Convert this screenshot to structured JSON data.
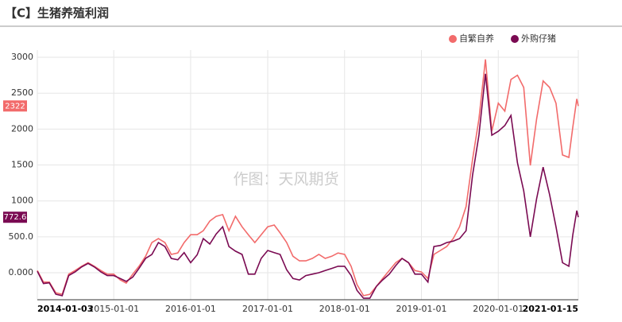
{
  "chart_data": {
    "type": "line",
    "title": "【C】生猪养殖利润",
    "watermark": "作图：天风期货",
    "x": [
      "2014-01-03",
      "2014-02-01",
      "2014-03-01",
      "2014-04-01",
      "2014-05-01",
      "2014-06-01",
      "2014-07-01",
      "2014-08-01",
      "2014-09-01",
      "2014-10-01",
      "2014-11-01",
      "2014-12-01",
      "2015-01-01",
      "2015-02-01",
      "2015-03-01",
      "2015-04-01",
      "2015-05-01",
      "2015-06-01",
      "2015-07-01",
      "2015-08-01",
      "2015-09-01",
      "2015-10-01",
      "2015-11-01",
      "2015-12-01",
      "2016-01-01",
      "2016-02-01",
      "2016-03-01",
      "2016-04-01",
      "2016-05-01",
      "2016-06-01",
      "2016-07-01",
      "2016-08-01",
      "2016-09-01",
      "2016-10-01",
      "2016-11-01",
      "2016-12-01",
      "2017-01-01",
      "2017-02-01",
      "2017-03-01",
      "2017-04-01",
      "2017-05-01",
      "2017-06-01",
      "2017-07-01",
      "2017-08-01",
      "2017-09-01",
      "2017-10-01",
      "2017-11-01",
      "2017-12-01",
      "2018-01-01",
      "2018-02-01",
      "2018-03-01",
      "2018-04-01",
      "2018-05-01",
      "2018-06-01",
      "2018-07-01",
      "2018-08-01",
      "2018-09-01",
      "2018-10-01",
      "2018-11-01",
      "2018-12-01",
      "2019-01-01",
      "2019-02-01",
      "2019-03-01",
      "2019-04-01",
      "2019-05-01",
      "2019-06-01",
      "2019-07-01",
      "2019-08-01",
      "2019-09-01",
      "2019-10-01",
      "2019-11-01",
      "2019-12-01",
      "2020-01-01",
      "2020-02-01",
      "2020-03-01",
      "2020-04-01",
      "2020-05-01",
      "2020-06-01",
      "2020-07-01",
      "2020-08-01",
      "2020-09-01",
      "2020-10-01",
      "2020-11-01",
      "2020-12-01",
      "2020-12-20",
      "2021-01-08",
      "2021-01-15"
    ],
    "series": [
      {
        "name": "自繁自养",
        "color": "#f26b6b",
        "values": [
          30,
          -130,
          -130,
          -280,
          -300,
          -20,
          30,
          90,
          140,
          90,
          30,
          -20,
          -20,
          -100,
          -145,
          -20,
          90,
          230,
          420,
          475,
          420,
          255,
          275,
          420,
          530,
          530,
          585,
          720,
          785,
          810,
          585,
          785,
          640,
          530,
          420,
          530,
          640,
          665,
          555,
          420,
          230,
          165,
          165,
          200,
          255,
          200,
          230,
          275,
          255,
          90,
          -165,
          -320,
          -300,
          -190,
          -80,
          30,
          140,
          200,
          140,
          30,
          10,
          -80,
          255,
          310,
          365,
          475,
          640,
          920,
          1580,
          2140,
          2970,
          1970,
          2360,
          2250,
          2690,
          2750,
          2580,
          1495,
          2140,
          2670,
          2580,
          2360,
          1640,
          1605,
          2030,
          2420,
          2322
        ]
      },
      {
        "name": "外购仔猪",
        "color": "#7a0a52",
        "values": [
          20,
          -150,
          -140,
          -300,
          -320,
          -40,
          10,
          80,
          130,
          80,
          10,
          -40,
          -40,
          -80,
          -120,
          -60,
          60,
          200,
          255,
          420,
          365,
          200,
          180,
          280,
          140,
          250,
          475,
          400,
          540,
          640,
          365,
          300,
          255,
          -20,
          -20,
          200,
          310,
          280,
          255,
          40,
          -80,
          -100,
          -40,
          -20,
          0,
          30,
          60,
          90,
          90,
          -40,
          -245,
          -355,
          -355,
          -190,
          -100,
          -20,
          100,
          200,
          140,
          -20,
          -20,
          -130,
          365,
          380,
          420,
          440,
          475,
          585,
          1360,
          1915,
          2770,
          1915,
          1970,
          2050,
          2190,
          1530,
          1140,
          500,
          1030,
          1470,
          1085,
          640,
          140,
          90,
          530,
          865,
          772.6
        ]
      }
    ],
    "xlim": [
      "2014-01-03",
      "2021-01-15"
    ],
    "xticks": [
      "2014-01-03",
      "2015-01-01",
      "2016-01-01",
      "2017-01-01",
      "2018-01-01",
      "2019-01-01",
      "2020-01-01",
      "2021-01-15"
    ],
    "ylim": [
      -376,
      3100
    ],
    "yticks": [
      {
        "value": 0,
        "label": "0.000"
      },
      {
        "value": 500,
        "label": "500.0"
      },
      1000,
      1500,
      2000,
      2500,
      3000
    ],
    "grid": true,
    "legend": "top-right"
  }
}
